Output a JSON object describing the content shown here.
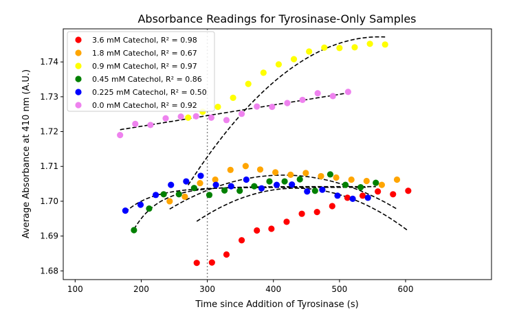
{
  "chart_data": {
    "type": "scatter",
    "title": "Absorbance Readings for Tyrosinase-Only Samples",
    "xlabel": "Time since Addition of Tyrosinase (s)",
    "ylabel": "Average Absorbance at 410 nm (A.U.)",
    "xlim": [
      82,
      730
    ],
    "ylim": [
      1.6775,
      1.7495
    ],
    "xticks": [
      100,
      200,
      300,
      400,
      500,
      600
    ],
    "yticks": [
      1.68,
      1.69,
      1.7,
      1.71,
      1.72,
      1.73,
      1.74
    ],
    "vline_x": 300,
    "legend_position": "top-left",
    "series": [
      {
        "name": "3.6 mM Catechol, R² = 0.98",
        "color": "#ff0000",
        "x": [
          284,
          307,
          329,
          352,
          375,
          397,
          420,
          443,
          466,
          489,
          512,
          535,
          558,
          581,
          604
        ],
        "y": [
          1.6823,
          1.6824,
          1.6847,
          1.6888,
          1.6916,
          1.6921,
          1.6941,
          1.6964,
          1.6969,
          1.6986,
          1.701,
          1.7016,
          1.7028,
          1.702,
          1.703
        ],
        "fit": {
          "x_start": 284,
          "x_end": 604,
          "a": -4.2356e-07,
          "b": 0.00036756,
          "c": 1.624
        }
      },
      {
        "name": "1.8 mM Catechol, R² = 0.67",
        "color": "#ffa500",
        "x": [
          243,
          266,
          289,
          312,
          335,
          358,
          380,
          403,
          426,
          449,
          472,
          495,
          518,
          541,
          564,
          587
        ],
        "y": [
          1.7,
          1.7013,
          1.7052,
          1.7062,
          1.709,
          1.7101,
          1.7091,
          1.7083,
          1.7076,
          1.7081,
          1.7072,
          1.7068,
          1.7062,
          1.7058,
          1.7047,
          1.7062
        ],
        "fit": {
          "x_start": 243,
          "x_end": 587,
          "a": -3.2917e-07,
          "b": 0.00027322,
          "c": 1.6508
        }
      },
      {
        "name": "0.9 mM Catechol, R² = 0.97",
        "color": "#ffff00",
        "x": [
          271,
          293,
          316,
          339,
          362,
          385,
          408,
          431,
          454,
          477,
          500,
          523,
          546,
          569
        ],
        "y": [
          1.724,
          1.7257,
          1.7271,
          1.7297,
          1.7337,
          1.7369,
          1.7393,
          1.7408,
          1.743,
          1.7441,
          1.744,
          1.7442,
          1.7452,
          1.745
        ],
        "fit": {
          "x_start": 271,
          "x_end": 569,
          "a": -5.0883e-07,
          "b": 0.00057013,
          "c": 1.5875
        }
      },
      {
        "name": "0.45 mM Catechol, R² = 0.86",
        "color": "#008000",
        "x": [
          189,
          212,
          234,
          257,
          280,
          303,
          326,
          349,
          371,
          394,
          417,
          440,
          463,
          486,
          509,
          532,
          555
        ],
        "y": [
          1.6917,
          1.6979,
          1.702,
          1.702,
          1.7038,
          1.7018,
          1.7031,
          1.703,
          1.7043,
          1.7057,
          1.7057,
          1.7063,
          1.703,
          1.7077,
          1.7047,
          1.704,
          1.7053
        ],
        "fit": {
          "x_start": 189,
          "x_end": 555,
          "type": "exp",
          "A": 1.7042,
          "B": 0.0122,
          "k": 0.026
        }
      },
      {
        "name": "0.225 mM Catechol, R² = 0.50",
        "color": "#0000ff",
        "x": [
          176,
          199,
          222,
          245,
          268,
          290,
          313,
          336,
          359,
          382,
          405,
          428,
          451,
          474,
          497,
          520,
          543
        ],
        "y": [
          1.6973,
          1.699,
          1.7018,
          1.7047,
          1.7057,
          1.7073,
          1.7047,
          1.7043,
          1.7062,
          1.7037,
          1.7047,
          1.7048,
          1.7028,
          1.7033,
          1.7016,
          1.7007,
          1.701
        ],
        "fit": {
          "x_start": 176,
          "x_end": 543,
          "type": "exp",
          "A": 1.704,
          "B": 0.0071,
          "k": 0.024
        }
      },
      {
        "name": "0.0 mM Catechol, R² = 0.92",
        "color": "#ee82ee",
        "x": [
          168,
          191,
          214,
          237,
          260,
          283,
          306,
          329,
          352,
          375,
          398,
          421,
          444,
          467,
          490,
          513
        ],
        "y": [
          1.719,
          1.7222,
          1.7219,
          1.7238,
          1.7243,
          1.7244,
          1.724,
          1.7233,
          1.7251,
          1.7272,
          1.7271,
          1.7282,
          1.7291,
          1.731,
          1.7302,
          1.7314
        ],
        "fit": {
          "x_start": 168,
          "x_end": 513,
          "a": 0,
          "b": 3.06e-05,
          "c": 1.7154
        }
      }
    ]
  }
}
